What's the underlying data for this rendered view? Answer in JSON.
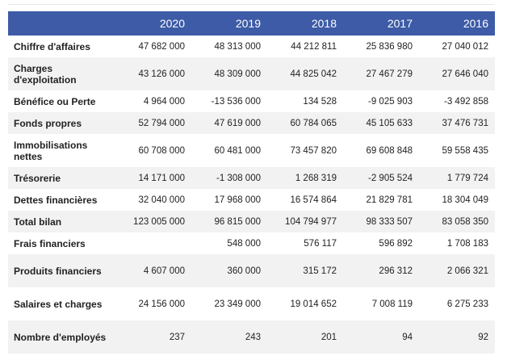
{
  "table": {
    "years": [
      "2020",
      "2019",
      "2018",
      "2017",
      "2016"
    ],
    "rows": [
      {
        "label": "Chiffre d'affaires",
        "values": [
          "47 682 000",
          "48 313 000",
          "44 212 811",
          "25 836 980",
          "27 040 012"
        ]
      },
      {
        "label": "Charges d'exploitation",
        "values": [
          "43 126 000",
          "48 309 000",
          "44 825 042",
          "27 467 279",
          "27 646 040"
        ]
      },
      {
        "label": "Bénéfice ou Perte",
        "values": [
          "4 964 000",
          "-13 536 000",
          "134 528",
          "-9 025 903",
          "-3 492 858"
        ]
      },
      {
        "label": "Fonds propres",
        "values": [
          "52 794 000",
          "47 619 000",
          "60 784 065",
          "45 105 633",
          "37 476 731"
        ]
      },
      {
        "label": "Immobilisations nettes",
        "values": [
          "60 708 000",
          "60 481 000",
          "73 457 820",
          "69 608 848",
          "59 558 435"
        ]
      },
      {
        "label": "Trésorerie",
        "values": [
          "14 171 000",
          "-1 308 000",
          "1 268 319",
          "-2 905 524",
          "1 779 724"
        ]
      },
      {
        "label": "Dettes financières",
        "values": [
          "32 040 000",
          "17 968 000",
          "16 574 864",
          "21 829 781",
          "18 304 049"
        ]
      },
      {
        "label": "Total bilan",
        "values": [
          "123 005 000",
          "96 815 000",
          "104 794 977",
          "98 333 507",
          "83 058 350"
        ]
      },
      {
        "label": "Frais financiers",
        "values": [
          "",
          "548 000",
          "576 117",
          "596 892",
          "1 708 183"
        ]
      },
      {
        "label": "Produits financiers",
        "values": [
          "4 607 000",
          "360 000",
          "315 172",
          "296 312",
          "2 066 321"
        ]
      },
      {
        "label": "Salaires et charges",
        "values": [
          "24 156 000",
          "23 349 000",
          "19 014 652",
          "7 008 119",
          "6 275 233"
        ]
      },
      {
        "label": "Nombre d'employés",
        "values": [
          "237",
          "243",
          "201",
          "94",
          "92"
        ]
      }
    ]
  }
}
